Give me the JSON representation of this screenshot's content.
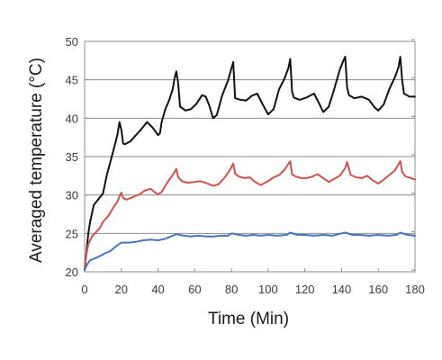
{
  "chart_data": {
    "type": "line",
    "title": "",
    "xlabel": "Time (Min)",
    "ylabel": "Averaged temperature (°C)",
    "xlim": [
      0,
      180
    ],
    "ylim": [
      20,
      50
    ],
    "x_ticks": [
      0,
      20,
      40,
      60,
      80,
      100,
      120,
      140,
      160,
      180
    ],
    "y_ticks": [
      20,
      25,
      30,
      35,
      40,
      45,
      50
    ],
    "grid": "horizontal",
    "legend": "none",
    "series": [
      {
        "color": "#111111",
        "x": [
          0,
          1,
          2,
          3,
          5,
          8,
          10,
          12,
          15,
          17,
          18,
          19,
          20,
          21,
          22,
          25,
          28,
          31,
          34,
          37,
          40,
          41,
          42,
          44,
          46,
          48,
          49,
          50,
          51,
          52,
          55,
          58,
          61,
          64,
          66,
          68,
          70,
          72,
          75,
          78,
          80,
          81,
          82,
          85,
          88,
          91,
          94,
          97,
          100,
          103,
          106,
          109,
          111,
          112,
          113,
          114,
          117,
          121,
          125,
          128,
          130,
          133,
          136,
          139,
          141,
          142,
          143,
          144,
          147,
          151,
          155,
          158,
          160,
          163,
          166,
          169,
          171,
          172,
          173,
          174,
          177,
          180
        ],
        "values": [
          20.2,
          22.5,
          25.0,
          26.5,
          28.7,
          29.6,
          30.2,
          32.5,
          35.2,
          37.0,
          38.0,
          39.5,
          38.5,
          36.7,
          36.6,
          37.0,
          37.8,
          38.6,
          39.5,
          38.8,
          37.8,
          38.0,
          39.5,
          41.2,
          42.3,
          43.8,
          45.2,
          46.1,
          44.5,
          41.5,
          41.0,
          41.2,
          41.9,
          43.0,
          42.8,
          41.6,
          40.0,
          40.4,
          43.0,
          44.8,
          46.5,
          47.3,
          42.6,
          42.4,
          42.3,
          42.9,
          43.2,
          41.8,
          40.5,
          41.2,
          43.8,
          45.2,
          46.5,
          47.7,
          43.5,
          42.7,
          42.4,
          42.7,
          43.2,
          41.8,
          40.8,
          41.5,
          43.8,
          46.3,
          47.5,
          48.0,
          44.0,
          43.0,
          42.6,
          42.8,
          42.4,
          41.4,
          41.0,
          41.8,
          43.8,
          45.3,
          46.6,
          48.0,
          45.0,
          43.2,
          42.8,
          42.8
        ]
      },
      {
        "color": "#c95450",
        "x": [
          0,
          1,
          2,
          4,
          6,
          8,
          10,
          13,
          16,
          18,
          19,
          20,
          21,
          23,
          26,
          30,
          33,
          36,
          38,
          40,
          42,
          45,
          48,
          50,
          51,
          53,
          56,
          60,
          63,
          67,
          70,
          73,
          76,
          79,
          81,
          82,
          84,
          87,
          90,
          93,
          96,
          100,
          103,
          106,
          109,
          112,
          113,
          115,
          118,
          121,
          124,
          127,
          130,
          133,
          136,
          139,
          142,
          143,
          145,
          148,
          151,
          154,
          157,
          160,
          163,
          166,
          169,
          172,
          173,
          175,
          178,
          180
        ],
        "values": [
          20.5,
          22.3,
          23.6,
          24.6,
          25.1,
          25.6,
          26.5,
          27.3,
          28.5,
          29.2,
          29.8,
          30.3,
          29.6,
          29.4,
          29.7,
          30.1,
          30.6,
          30.8,
          30.4,
          30.1,
          30.4,
          31.6,
          32.6,
          33.4,
          32.3,
          31.8,
          31.6,
          31.7,
          31.8,
          31.5,
          31.2,
          31.4,
          32.2,
          33.2,
          34.1,
          32.8,
          32.4,
          32.2,
          32.3,
          31.7,
          31.3,
          31.8,
          32.3,
          32.6,
          33.3,
          34.4,
          32.7,
          32.4,
          32.2,
          32.2,
          32.4,
          32.7,
          32.2,
          31.7,
          32.1,
          32.5,
          33.5,
          34.3,
          32.6,
          32.3,
          32.2,
          32.5,
          31.9,
          31.5,
          32.0,
          32.6,
          33.2,
          34.4,
          33.0,
          32.4,
          32.2,
          32.0
        ]
      },
      {
        "color": "#4a74b8",
        "x": [
          0,
          1,
          2,
          3,
          5,
          8,
          11,
          14,
          17,
          20,
          24,
          28,
          32,
          36,
          40,
          44,
          47,
          50,
          54,
          58,
          62,
          66,
          70,
          74,
          78,
          80,
          84,
          88,
          92,
          96,
          100,
          105,
          110,
          112,
          116,
          120,
          125,
          130,
          135,
          140,
          142,
          146,
          150,
          155,
          160,
          165,
          170,
          172,
          176,
          180
        ],
        "values": [
          20.2,
          20.8,
          21.2,
          21.5,
          21.7,
          22.0,
          22.4,
          22.7,
          23.3,
          23.8,
          23.8,
          23.9,
          24.1,
          24.2,
          24.1,
          24.3,
          24.6,
          24.9,
          24.7,
          24.6,
          24.7,
          24.6,
          24.6,
          24.7,
          24.7,
          25.0,
          24.8,
          24.7,
          24.8,
          24.7,
          24.8,
          24.7,
          24.8,
          25.1,
          24.8,
          24.8,
          24.7,
          24.8,
          24.7,
          25.0,
          25.1,
          24.8,
          24.8,
          24.7,
          24.8,
          24.7,
          24.8,
          25.1,
          24.8,
          24.7
        ]
      }
    ]
  }
}
